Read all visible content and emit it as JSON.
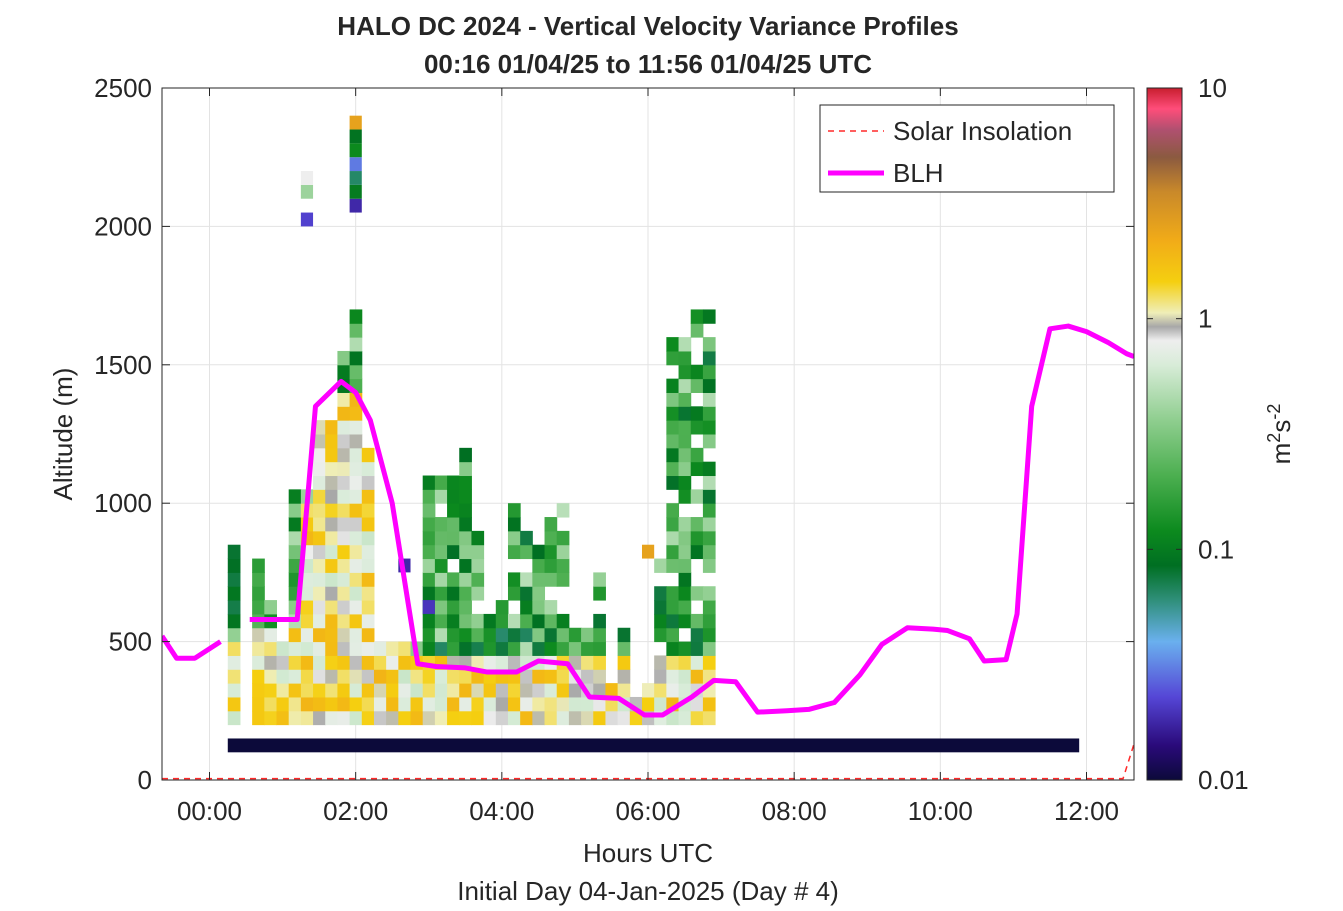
{
  "chart_data": {
    "type": "heatmap",
    "title": "HALO DC 2024 - Vertical Velocity Variance Profiles",
    "subtitle": "00:16 01/04/25 to 11:56 01/04/25  UTC",
    "xlabel": "Hours UTC",
    "xlabel2": "Initial Day 04-Jan-2025 (Day # 4)",
    "ylabel": "Altitude (m)",
    "xlim": [
      -0.65,
      12.65
    ],
    "ylim": [
      0,
      2500
    ],
    "x_ticks": [
      0,
      2,
      4,
      6,
      8,
      10,
      12
    ],
    "x_tick_labels": [
      "00:00",
      "02:00",
      "04:00",
      "06:00",
      "08:00",
      "10:00",
      "12:00"
    ],
    "y_ticks": [
      0,
      500,
      1000,
      1500,
      2000,
      2500
    ],
    "y_tick_labels": [
      "0",
      "500",
      "1000",
      "1500",
      "2000",
      "2500"
    ],
    "grid": true,
    "legend": {
      "placement": "top-right",
      "entries": [
        {
          "label": "Solar Insolation",
          "style": "dashed",
          "color": "#ff2a2a"
        },
        {
          "label": "BLH",
          "style": "solid",
          "color": "#ff00ff"
        }
      ]
    },
    "colorbar": {
      "label": "m2s-2",
      "scale": "log",
      "range": [
        0.01,
        10
      ],
      "ticks": [
        0.01,
        0.1,
        1,
        10
      ],
      "tick_labels": [
        "0.01",
        "0.1",
        "1",
        "10"
      ]
    },
    "grid_spec": {
      "x_start": 0.25,
      "x_step": 0.1667,
      "n_cols": 40,
      "y_start": 200,
      "y_step": 50,
      "n_rows": 36,
      "sparse_cells": [
        {
          "col": 6,
          "row": 36,
          "value": 0.022
        },
        {
          "col": 6,
          "row": 38,
          "value": 0.4
        },
        {
          "col": 6,
          "row": 39,
          "value": 0.8
        },
        {
          "col": 10,
          "row": 37,
          "value": 0.018
        },
        {
          "col": 10,
          "row": 38,
          "value": 0.1
        },
        {
          "col": 10,
          "row": 39,
          "value": 0.065
        },
        {
          "col": 10,
          "row": 40,
          "value": 0.03
        },
        {
          "col": 10,
          "row": 41,
          "value": 0.12
        },
        {
          "col": 10,
          "row": 42,
          "value": 0.09
        },
        {
          "col": 10,
          "row": 43,
          "value": 2.5
        },
        {
          "col": 14,
          "row": 11,
          "value": 0.018
        },
        {
          "col": 16,
          "row": 8,
          "value": 0.02
        },
        {
          "col": 34,
          "row": 12,
          "value": 2.5
        }
      ]
    },
    "surface_band": {
      "x_range": [
        0.25,
        11.9
      ],
      "y_range": [
        100,
        150
      ],
      "value": 0.01
    },
    "blh": {
      "x": [
        -0.65,
        -0.45,
        -0.2,
        0.15,
        0.3,
        0.55,
        0.8,
        1.0,
        1.2,
        1.45,
        1.8,
        2.0,
        2.2,
        2.5,
        2.85,
        3.1,
        3.5,
        3.8,
        4.2,
        4.5,
        4.9,
        5.2,
        5.6,
        5.95,
        6.2,
        6.6,
        6.9,
        7.2,
        7.5,
        7.9,
        8.2,
        8.55,
        8.9,
        9.2,
        9.55,
        9.9,
        10.1,
        10.4,
        10.6,
        10.9,
        11.05,
        11.25,
        11.5,
        11.75,
        12.0,
        12.3,
        12.55,
        12.65
      ],
      "y": [
        520,
        440,
        440,
        500,
        530,
        580,
        580,
        580,
        580,
        1350,
        1440,
        1400,
        1300,
        1000,
        420,
        410,
        405,
        390,
        390,
        430,
        420,
        300,
        295,
        235,
        235,
        300,
        360,
        355,
        245,
        250,
        255,
        280,
        380,
        490,
        550,
        545,
        540,
        510,
        430,
        435,
        600,
        1350,
        1630,
        1640,
        1620,
        1580,
        1540,
        1530
      ]
    },
    "solar_insolation": {
      "x": [
        -0.65,
        12.5,
        12.65
      ],
      "y": [
        5,
        5,
        130
      ]
    }
  }
}
